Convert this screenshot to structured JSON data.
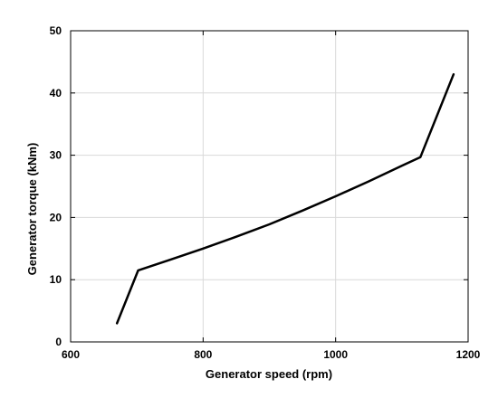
{
  "chart_data": {
    "type": "line",
    "title": "",
    "xlabel": "Generator speed (rpm)",
    "ylabel": "Generator torque (kNm)",
    "xlim": [
      600,
      1200
    ],
    "ylim": [
      0,
      50
    ],
    "xticks": [
      600,
      800,
      1000,
      1200
    ],
    "yticks": [
      0,
      10,
      20,
      30,
      40,
      50
    ],
    "grid": true,
    "legend": "none",
    "line_color": "#000000",
    "series": [
      {
        "x": [
          670,
          702,
          750,
          800,
          850,
          900,
          950,
          1000,
          1050,
          1100,
          1128,
          1178
        ],
        "y": [
          3.0,
          11.5,
          13.2,
          15.0,
          16.9,
          18.9,
          21.1,
          23.4,
          25.8,
          28.3,
          29.7,
          43.0
        ]
      }
    ]
  }
}
